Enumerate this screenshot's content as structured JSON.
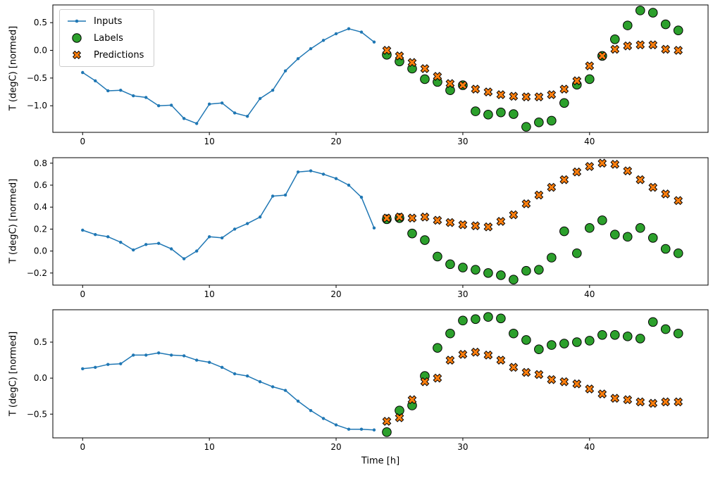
{
  "figure": {
    "ylabel": "T (degC) [normed]",
    "xlabel": "Time [h]",
    "colors": {
      "inputs": "#1f77b4",
      "labels": "#2ca02c",
      "predictions": "#ff7f0e",
      "marker_edge": "#000000",
      "axis": "#000000",
      "legend_border": "#cccccc",
      "background": "#ffffff"
    },
    "legend": {
      "position": "upper-left",
      "items": [
        {
          "label": "Inputs",
          "marker": "line-dot"
        },
        {
          "label": "Labels",
          "marker": "circle"
        },
        {
          "label": "Predictions",
          "marker": "X"
        }
      ]
    }
  },
  "chart_data": [
    {
      "type": "line",
      "title": "",
      "xlabel": "",
      "ylabel": "T (degC) [normed]",
      "xlim": [
        -2.35,
        49.35
      ],
      "ylim": [
        -1.48,
        0.82
      ],
      "xticks": [
        0,
        10,
        20,
        30,
        40
      ],
      "yticks": [
        0.5,
        0.0,
        -0.5,
        -1.0
      ],
      "grid": false,
      "series": [
        {
          "name": "Inputs",
          "kind": "line",
          "marker": "dot",
          "x": [
            0,
            1,
            2,
            3,
            4,
            5,
            6,
            7,
            8,
            9,
            10,
            11,
            12,
            13,
            14,
            15,
            16,
            17,
            18,
            19,
            20,
            21,
            22,
            23
          ],
          "values": [
            -0.4,
            -0.55,
            -0.73,
            -0.72,
            -0.82,
            -0.85,
            -1.0,
            -0.99,
            -1.23,
            -1.32,
            -0.97,
            -0.95,
            -1.13,
            -1.19,
            -0.87,
            -0.72,
            -0.37,
            -0.15,
            0.03,
            0.18,
            0.3,
            0.39,
            0.33,
            0.15
          ]
        },
        {
          "name": "Labels",
          "kind": "scatter",
          "marker": "circle",
          "x": [
            24,
            25,
            26,
            27,
            28,
            29,
            30,
            31,
            32,
            33,
            34,
            35,
            36,
            37,
            38,
            39,
            40,
            41,
            42,
            43,
            44,
            45,
            46,
            47
          ],
          "values": [
            -0.08,
            -0.2,
            -0.33,
            -0.52,
            -0.57,
            -0.72,
            -0.63,
            -1.1,
            -1.16,
            -1.12,
            -1.15,
            -1.38,
            -1.3,
            -1.27,
            -0.95,
            -0.62,
            -0.52,
            -0.1,
            0.2,
            0.45,
            0.72,
            0.68,
            0.47,
            0.36
          ]
        },
        {
          "name": "Predictions",
          "kind": "scatter",
          "marker": "X",
          "x": [
            24,
            25,
            26,
            27,
            28,
            29,
            30,
            31,
            32,
            33,
            34,
            35,
            36,
            37,
            38,
            39,
            40,
            41,
            42,
            43,
            44,
            45,
            46,
            47
          ],
          "values": [
            0.0,
            -0.1,
            -0.22,
            -0.33,
            -0.47,
            -0.6,
            -0.63,
            -0.7,
            -0.75,
            -0.8,
            -0.83,
            -0.84,
            -0.84,
            -0.8,
            -0.7,
            -0.55,
            -0.28,
            -0.1,
            0.02,
            0.08,
            0.1,
            0.1,
            0.02,
            0.0
          ]
        }
      ]
    },
    {
      "type": "line",
      "title": "",
      "xlabel": "",
      "ylabel": "T (degC) [normed]",
      "xlim": [
        -2.35,
        49.35
      ],
      "ylim": [
        -0.31,
        0.85
      ],
      "xticks": [
        0,
        10,
        20,
        30,
        40
      ],
      "yticks": [
        0.8,
        0.6,
        0.4,
        0.2,
        0.0,
        -0.2
      ],
      "grid": false,
      "series": [
        {
          "name": "Inputs",
          "kind": "line",
          "marker": "dot",
          "x": [
            0,
            1,
            2,
            3,
            4,
            5,
            6,
            7,
            8,
            9,
            10,
            11,
            12,
            13,
            14,
            15,
            16,
            17,
            18,
            19,
            20,
            21,
            22,
            23
          ],
          "values": [
            0.19,
            0.15,
            0.13,
            0.08,
            0.01,
            0.06,
            0.07,
            0.02,
            -0.07,
            0.0,
            0.13,
            0.12,
            0.2,
            0.25,
            0.31,
            0.5,
            0.51,
            0.72,
            0.73,
            0.7,
            0.66,
            0.6,
            0.49,
            0.21
          ]
        },
        {
          "name": "Labels",
          "kind": "scatter",
          "marker": "circle",
          "x": [
            24,
            25,
            26,
            27,
            28,
            29,
            30,
            31,
            32,
            33,
            34,
            35,
            36,
            37,
            38,
            39,
            40,
            41,
            42,
            43,
            44,
            45,
            46,
            47
          ],
          "values": [
            0.29,
            0.3,
            0.16,
            0.1,
            -0.05,
            -0.12,
            -0.15,
            -0.17,
            -0.2,
            -0.22,
            -0.26,
            -0.18,
            -0.17,
            -0.06,
            0.18,
            -0.02,
            0.21,
            0.28,
            0.15,
            0.13,
            0.21,
            0.12,
            0.02,
            -0.02
          ]
        },
        {
          "name": "Predictions",
          "kind": "scatter",
          "marker": "X",
          "x": [
            24,
            25,
            26,
            27,
            28,
            29,
            30,
            31,
            32,
            33,
            34,
            35,
            36,
            37,
            38,
            39,
            40,
            41,
            42,
            43,
            44,
            45,
            46,
            47
          ],
          "values": [
            0.3,
            0.31,
            0.3,
            0.31,
            0.28,
            0.26,
            0.24,
            0.23,
            0.22,
            0.27,
            0.33,
            0.43,
            0.51,
            0.58,
            0.65,
            0.72,
            0.77,
            0.8,
            0.79,
            0.73,
            0.65,
            0.58,
            0.52,
            0.46
          ]
        }
      ]
    },
    {
      "type": "line",
      "title": "",
      "xlabel": "Time [h]",
      "ylabel": "T (degC) [normed]",
      "xlim": [
        -2.35,
        49.35
      ],
      "ylim": [
        -0.83,
        0.95
      ],
      "xticks": [
        0,
        10,
        20,
        30,
        40
      ],
      "yticks": [
        0.5,
        0.0,
        -0.5
      ],
      "grid": false,
      "series": [
        {
          "name": "Inputs",
          "kind": "line",
          "marker": "dot",
          "x": [
            0,
            1,
            2,
            3,
            4,
            5,
            6,
            7,
            8,
            9,
            10,
            11,
            12,
            13,
            14,
            15,
            16,
            17,
            18,
            19,
            20,
            21,
            22,
            23
          ],
          "values": [
            0.13,
            0.15,
            0.19,
            0.2,
            0.32,
            0.32,
            0.35,
            0.32,
            0.31,
            0.25,
            0.22,
            0.15,
            0.06,
            0.03,
            -0.05,
            -0.12,
            -0.17,
            -0.32,
            -0.45,
            -0.56,
            -0.65,
            -0.71,
            -0.71,
            -0.72
          ]
        },
        {
          "name": "Labels",
          "kind": "scatter",
          "marker": "circle",
          "x": [
            24,
            25,
            26,
            27,
            28,
            29,
            30,
            31,
            32,
            33,
            34,
            35,
            36,
            37,
            38,
            39,
            40,
            41,
            42,
            43,
            44,
            45,
            46,
            47
          ],
          "values": [
            -0.75,
            -0.45,
            -0.38,
            0.03,
            0.42,
            0.62,
            0.8,
            0.82,
            0.85,
            0.83,
            0.62,
            0.53,
            0.4,
            0.46,
            0.48,
            0.5,
            0.52,
            0.6,
            0.6,
            0.58,
            0.55,
            0.78,
            0.68,
            0.62
          ]
        },
        {
          "name": "Predictions",
          "kind": "scatter",
          "marker": "X",
          "x": [
            24,
            25,
            26,
            27,
            28,
            29,
            30,
            31,
            32,
            33,
            34,
            35,
            36,
            37,
            38,
            39,
            40,
            41,
            42,
            43,
            44,
            45,
            46,
            47
          ],
          "values": [
            -0.6,
            -0.55,
            -0.3,
            -0.05,
            0.0,
            0.25,
            0.33,
            0.36,
            0.32,
            0.25,
            0.15,
            0.08,
            0.05,
            -0.02,
            -0.05,
            -0.08,
            -0.15,
            -0.22,
            -0.28,
            -0.3,
            -0.33,
            -0.35,
            -0.33,
            -0.33
          ]
        }
      ]
    }
  ]
}
